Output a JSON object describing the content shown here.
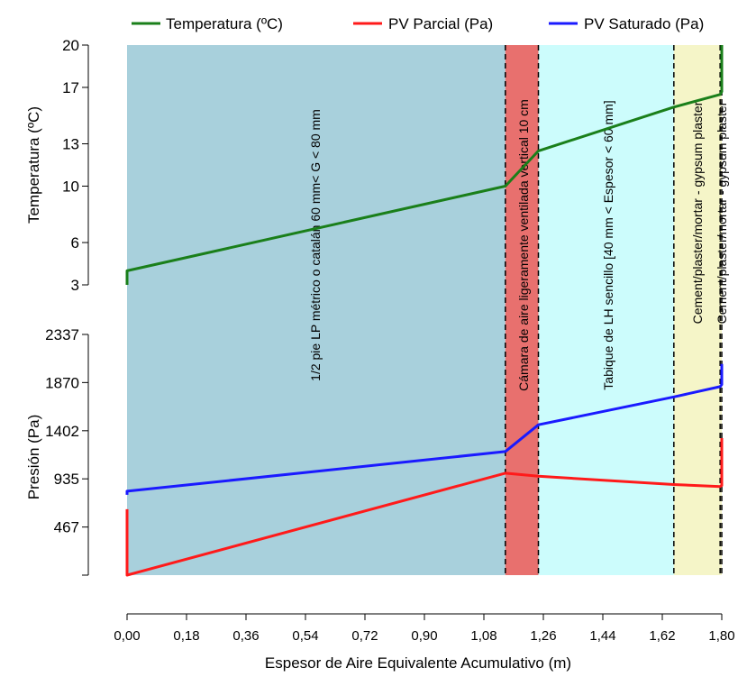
{
  "chart_data": {
    "type": "line",
    "legend": {
      "placement": "top",
      "entries": [
        {
          "label": "Temperatura (ºC)",
          "color": "#1a7f1a"
        },
        {
          "label": "PV Parcial (Pa)",
          "color": "#ff1a1a"
        },
        {
          "label": "PV Saturado (Pa)",
          "color": "#1a1aff"
        }
      ]
    },
    "xlabel": "Espesor de Aire Equivalente Acumulativo (m)",
    "xlim": [
      0,
      1.8
    ],
    "xticks": [
      0,
      0.18,
      0.36,
      0.54,
      0.72,
      0.9,
      1.08,
      1.26,
      1.44,
      1.62,
      1.8
    ],
    "xtick_labels": [
      "0,00",
      "0,18",
      "0,36",
      "0,54",
      "0,72",
      "0,90",
      "1,08",
      "1,26",
      "1,44",
      "1,62",
      "1,80"
    ],
    "layers": [
      {
        "label": "1/2 pie LP métrico o catalán 60 mm< G < 80 mm",
        "x0": 0,
        "x1": 1.145,
        "color": "#a8d0dc"
      },
      {
        "label": "Cámara de aire ligeramente ventilada vertical 10 cm",
        "x0": 1.145,
        "x1": 1.245,
        "color": "#e8706e"
      },
      {
        "label": "Tabique de LH sencillo [40 mm < Espesor < 60 mm]",
        "x0": 1.245,
        "x1": 1.655,
        "color": "#ccfcfc"
      },
      {
        "label": "Cement/plaster/mortar - gypsum plaster",
        "x0": 1.655,
        "x1": 1.795,
        "color": "#f5f5c8"
      },
      {
        "label": "Cement/plaster/mortar - gypsum plaster",
        "x0": 1.795,
        "x1": 1.8,
        "color": "#f5f5c8"
      }
    ],
    "temperature_panel": {
      "ylabel": "Temperatura (ºC)",
      "ylim": [
        3,
        20
      ],
      "yticks": [
        3,
        6,
        10,
        13,
        17,
        20
      ],
      "series": [
        {
          "name": "Temperatura (ºC)",
          "color": "#1a7f1a",
          "x": [
            0,
            0,
            1.145,
            1.245,
            1.655,
            1.795,
            1.8,
            1.8
          ],
          "y": [
            3.0,
            4.0,
            10.0,
            12.5,
            15.6,
            16.5,
            16.7,
            20.0
          ]
        }
      ]
    },
    "pressure_panel": {
      "ylabel": "Presión (Pa)",
      "ylim": [
        0,
        2337
      ],
      "yticks": [
        467,
        935,
        1402,
        1870,
        2337
      ],
      "series": [
        {
          "name": "PV Saturado (Pa)",
          "color": "#1a1aff",
          "x": [
            0,
            0,
            1.145,
            1.245,
            1.655,
            1.795,
            1.8,
            1.8
          ],
          "y": [
            780,
            815,
            1200,
            1460,
            1730,
            1830,
            1850,
            2050
          ]
        },
        {
          "name": "PV Parcial (Pa)",
          "color": "#ff1a1a",
          "x": [
            0,
            0,
            1.145,
            1.245,
            1.655,
            1.795,
            1.8,
            1.8
          ],
          "y": [
            640,
            0,
            990,
            960,
            880,
            860,
            870,
            1330
          ]
        }
      ]
    }
  }
}
